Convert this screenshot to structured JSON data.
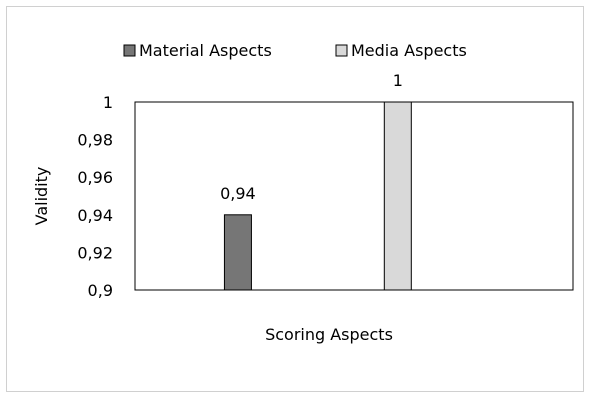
{
  "chart_data": {
    "type": "bar",
    "title": "",
    "categories": [
      "Material Aspects",
      "Media Aspects"
    ],
    "series": [
      {
        "name": "Material Aspects",
        "values": [
          0.94,
          null
        ],
        "color": "#767676"
      },
      {
        "name": "Media Aspects",
        "values": [
          null,
          1
        ],
        "color": "#d9d9d9"
      }
    ],
    "data_labels": [
      "0,94",
      "1"
    ],
    "xlabel": "Scoring Aspects",
    "ylabel": "Validity",
    "ylim": [
      0.9,
      1
    ],
    "y_ticks": [
      0.9,
      0.92,
      0.94,
      0.96,
      0.98,
      1
    ],
    "y_tick_labels": [
      "0,9",
      "0,92",
      "0,94",
      "0,96",
      "0,98",
      "1"
    ],
    "grid": false,
    "legend_position": "top"
  }
}
